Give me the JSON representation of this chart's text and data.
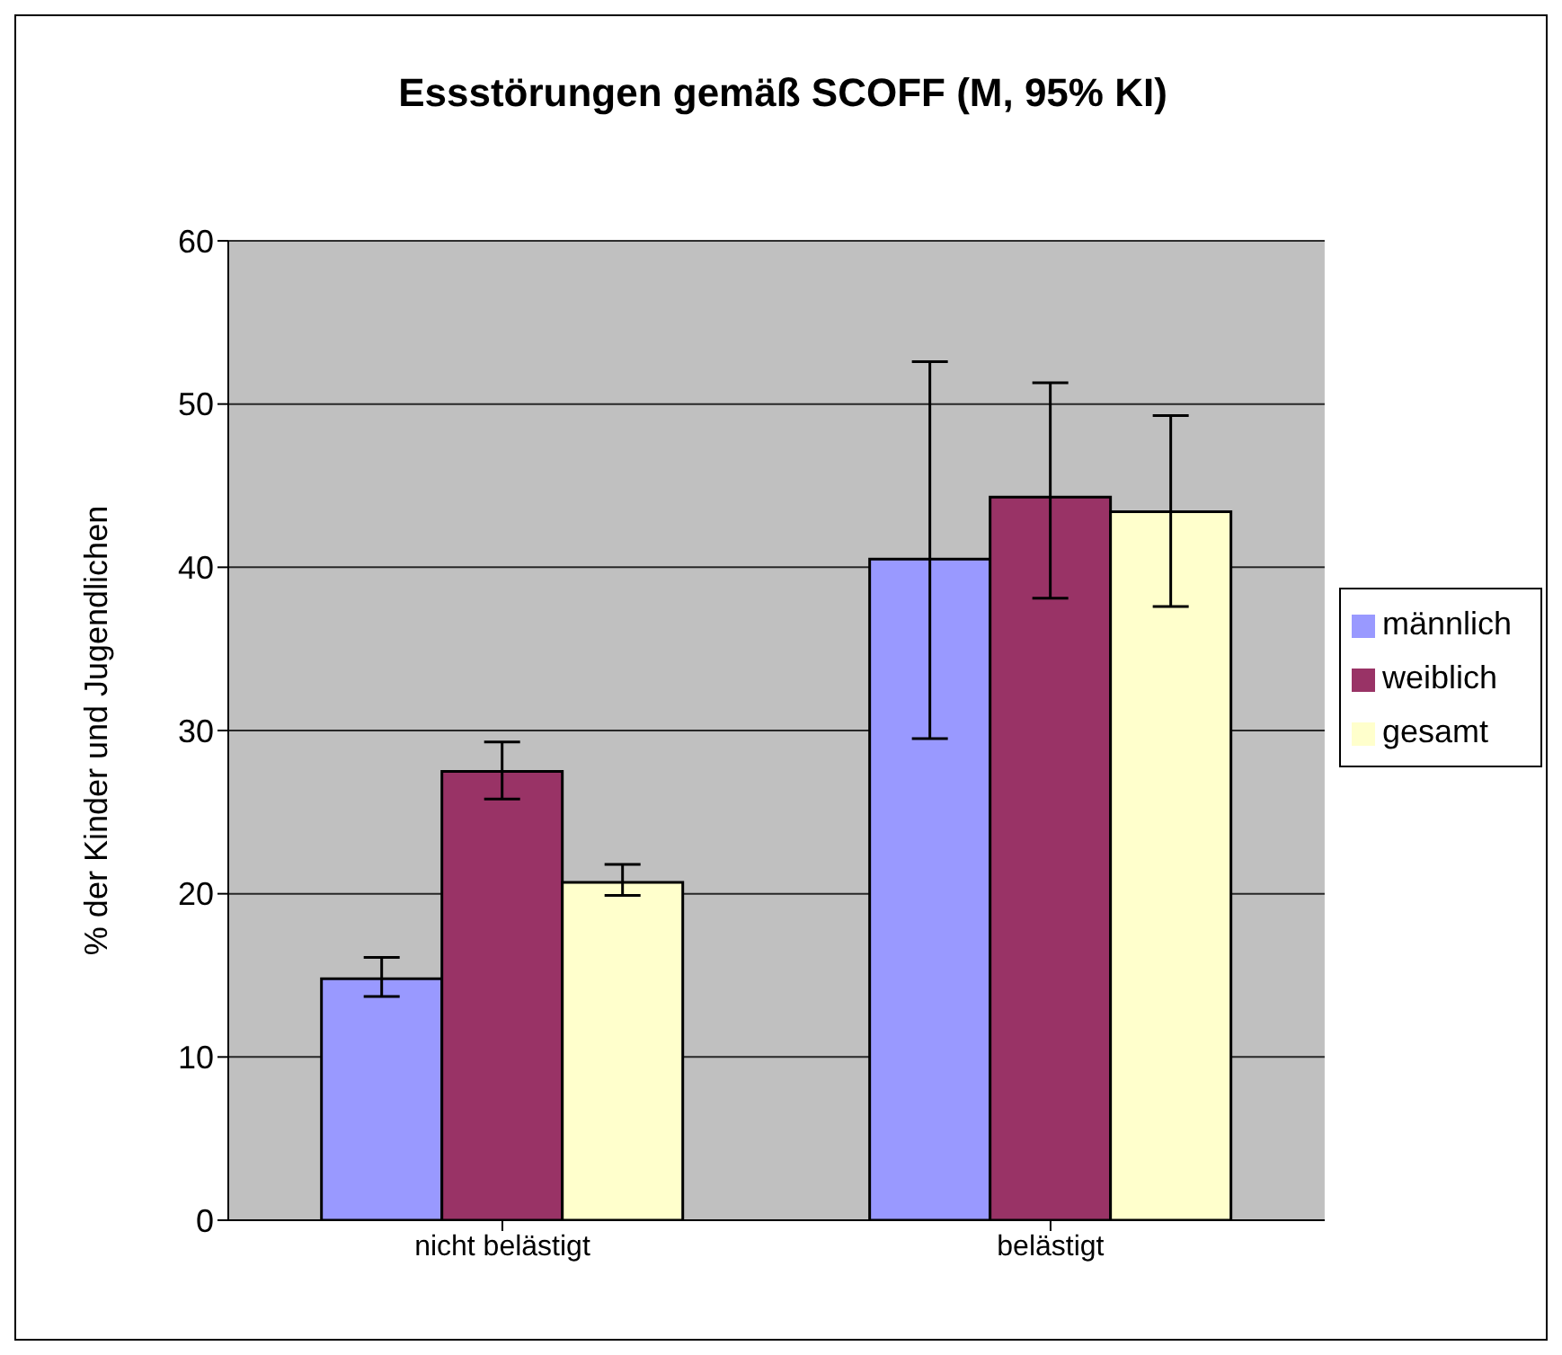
{
  "chart_data": {
    "type": "bar",
    "title": "Essstörungen gemäß SCOFF (M, 95% KI)",
    "ylabel": "% der Kinder und Jugendlichen",
    "categories": [
      "nicht belästigt",
      "belästigt"
    ],
    "series": [
      {
        "name": "männlich",
        "color": "#9999ff",
        "values": [
          14.8,
          40.5
        ],
        "errors": [
          [
            13.7,
            16.1
          ],
          [
            29.5,
            52.6
          ]
        ]
      },
      {
        "name": "weiblich",
        "color": "#993366",
        "values": [
          27.5,
          44.3
        ],
        "errors": [
          [
            25.8,
            29.3
          ],
          [
            38.1,
            51.3
          ]
        ]
      },
      {
        "name": "gesamt",
        "color": "#ffffcc",
        "values": [
          20.7,
          43.4
        ],
        "errors": [
          [
            19.9,
            21.8
          ],
          [
            37.6,
            49.3
          ]
        ]
      }
    ],
    "ylim": [
      0,
      60
    ],
    "yticks": [
      0,
      10,
      20,
      30,
      40,
      50,
      60
    ],
    "grid": "y",
    "legend": "right"
  }
}
